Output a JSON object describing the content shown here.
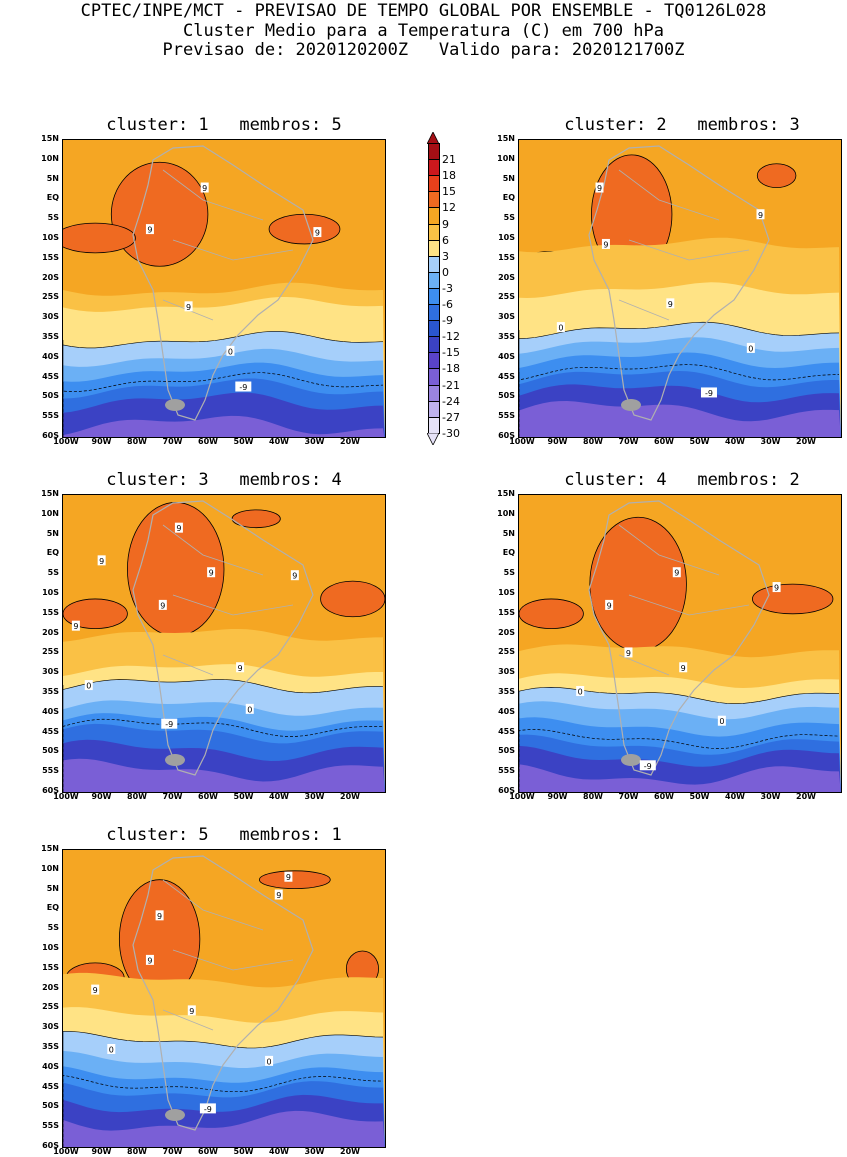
{
  "header": {
    "line1": "CPTEC/INPE/MCT - PREVISAO DE TEMPO GLOBAL POR ENSEMBLE - TQ0126L028",
    "line2": "Cluster Medio para a Temperatura (C) em 700 hPa",
    "line3": "Previsao de: 2020120200Z   Valido para: 2020121700Z"
  },
  "lat_labels": [
    "15N",
    "10N",
    "5N",
    "EQ",
    "5S",
    "10S",
    "15S",
    "20S",
    "25S",
    "30S",
    "35S",
    "40S",
    "45S",
    "50S",
    "55S",
    "60S"
  ],
  "lon_labels": [
    "100W",
    "90W",
    "80W",
    "70W",
    "60W",
    "50W",
    "40W",
    "30W",
    "20W"
  ],
  "colorbar": {
    "labels": [
      "21",
      "18",
      "15",
      "12",
      "9",
      "6",
      "3",
      "0",
      "-3",
      "-6",
      "-9",
      "-12",
      "-15",
      "-18",
      "-21",
      "-24",
      "-27",
      "-30"
    ],
    "colors": [
      "#a50f15",
      "#cb181d",
      "#e8401b",
      "#ef6a21",
      "#f5a623",
      "#fac145",
      "#ffe385",
      "#a6cffa",
      "#6bb0f5",
      "#3d8ef0",
      "#2f6fe0",
      "#2a56cf",
      "#3b42c4",
      "#5a43c9",
      "#7a5fd6",
      "#9a84e0",
      "#bfb2ee",
      "#e6e2f8"
    ]
  },
  "panels": [
    {
      "title": "cluster: 1   membros: 5",
      "contour_labels": [
        "9",
        "9",
        "9",
        "9",
        "0",
        "-9"
      ]
    },
    {
      "title": "cluster: 2   membros: 3",
      "contour_labels": [
        "9",
        "9",
        "9",
        "9",
        "0",
        "0",
        "-9"
      ]
    },
    {
      "title": "cluster: 3   membros: 4",
      "contour_labels": [
        "9",
        "9",
        "9",
        "9",
        "9",
        "9",
        "9",
        "0",
        "0",
        "-9"
      ]
    },
    {
      "title": "cluster: 4   membros: 2",
      "contour_labels": [
        "9",
        "9",
        "9",
        "9",
        "9",
        "0",
        "0",
        "-9"
      ]
    },
    {
      "title": "cluster: 5   membros: 1",
      "contour_labels": [
        "9",
        "9",
        "9",
        "9",
        "9",
        "9",
        "0",
        "0",
        "-9"
      ]
    }
  ]
}
